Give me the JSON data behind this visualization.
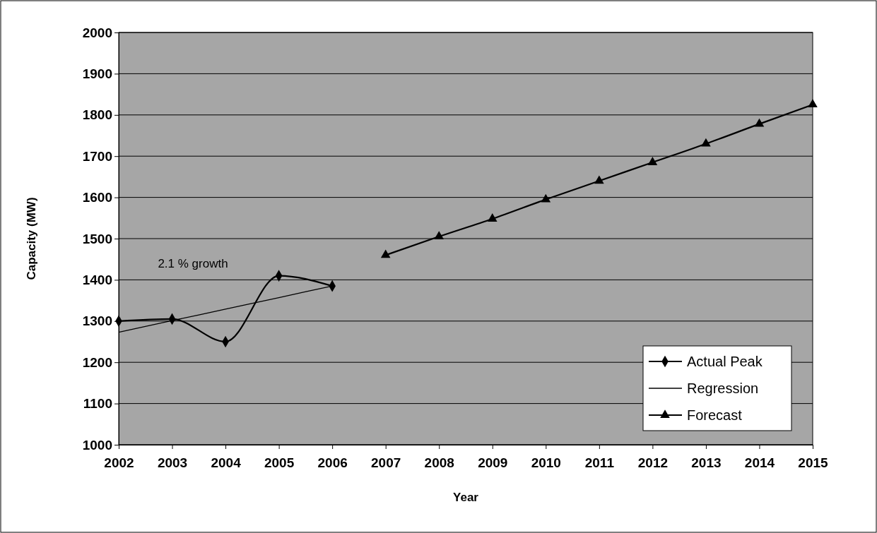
{
  "chart_data": {
    "type": "line",
    "xlabel": "Year",
    "ylabel": "Capacity (MW)",
    "categories": [
      "2002",
      "2003",
      "2004",
      "2005",
      "2006",
      "2007",
      "2008",
      "2009",
      "2010",
      "2011",
      "2012",
      "2013",
      "2014",
      "2015"
    ],
    "series": [
      {
        "name": "Actual Peak",
        "color": "#000000",
        "marker": "diamond",
        "values": [
          1300,
          1305,
          1250,
          1410,
          1385,
          null,
          null,
          null,
          null,
          null,
          null,
          null,
          null,
          null
        ]
      },
      {
        "name": "Regression",
        "color": "#000000",
        "marker": "none",
        "values": [
          1273,
          1301,
          1329,
          1357,
          1385,
          null,
          null,
          null,
          null,
          null,
          null,
          null,
          null,
          null
        ]
      },
      {
        "name": "Forecast",
        "color": "#000000",
        "marker": "triangle",
        "values": [
          null,
          null,
          null,
          null,
          null,
          1460,
          1505,
          1548,
          1595,
          1640,
          1685,
          1730,
          1778,
          1825
        ]
      }
    ],
    "ylim": [
      1000,
      2000
    ],
    "yticks": [
      1000,
      1100,
      1200,
      1300,
      1400,
      1500,
      1600,
      1700,
      1800,
      1900,
      2000
    ],
    "grid": "y",
    "legend": "bottom right",
    "annotations": [
      "2.1 % growth"
    ]
  }
}
